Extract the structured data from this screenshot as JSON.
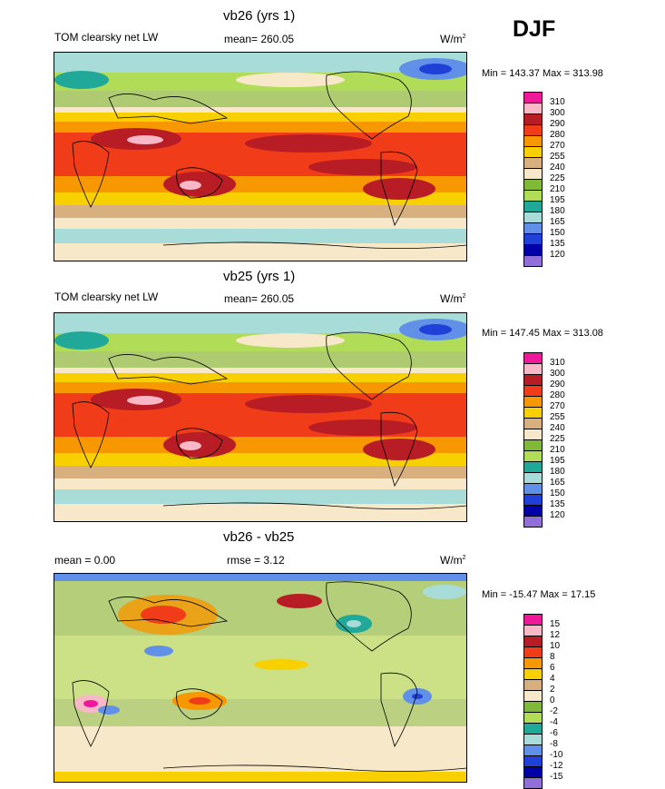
{
  "season": "DJF",
  "panels": [
    {
      "title": "vb26 (yrs 1)",
      "left_label": "TOM clearsky net LW",
      "center_label": "mean= 260.05",
      "units_base": "W/m",
      "units_exp": "2",
      "minmax": "Min = 143.37 Max = 313.98",
      "kind": "abs"
    },
    {
      "title": "vb25 (yrs 1)",
      "left_label": "TOM clearsky net LW",
      "center_label": "mean= 260.05",
      "units_base": "W/m",
      "units_exp": "2",
      "minmax": "Min = 147.45 Max = 313.08",
      "kind": "abs"
    },
    {
      "title": "vb26 - vb25",
      "left_label": "mean =   0.00",
      "center_label": "rmse =    3.12",
      "units_base": "W/m",
      "units_exp": "2",
      "minmax": "Min = -15.47 Max =  17.15",
      "kind": "diff"
    }
  ],
  "colorbars": {
    "abs": {
      "labels": [
        "310",
        "300",
        "290",
        "280",
        "270",
        "255",
        "240",
        "225",
        "210",
        "195",
        "180",
        "165",
        "150",
        "135",
        "120"
      ],
      "colors": [
        "#f0189a",
        "#f8b8c8",
        "#b81c24",
        "#f03c18",
        "#f89800",
        "#f8d000",
        "#d8b080",
        "#f6e8c8",
        "#80b838",
        "#b0dc58",
        "#20a898",
        "#a8dcd8",
        "#6090e8",
        "#2040d8",
        "#0000a8",
        "#9070d8"
      ]
    },
    "diff": {
      "labels": [
        "15",
        "12",
        "10",
        "8",
        "6",
        "4",
        "2",
        "0",
        "-2",
        "-4",
        "-6",
        "-8",
        "-10",
        "-12",
        "-15"
      ],
      "colors": [
        "#f0189a",
        "#f8b8c8",
        "#b81c24",
        "#f03c18",
        "#f89800",
        "#f8d000",
        "#d8b080",
        "#f6e8c8",
        "#80b838",
        "#b0dc58",
        "#20a898",
        "#a8dcd8",
        "#6090e8",
        "#2040d8",
        "#0000a8",
        "#9070d8"
      ]
    }
  }
}
